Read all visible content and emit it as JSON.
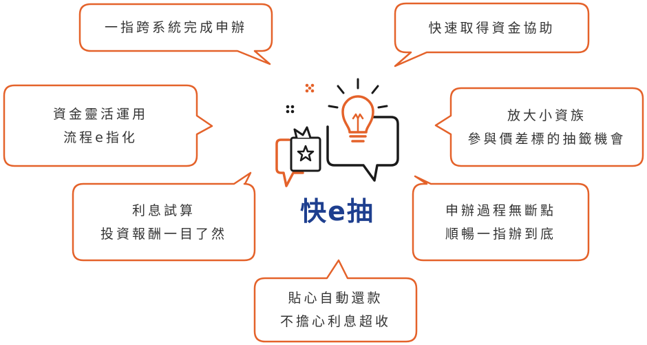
{
  "colors": {
    "bubble_border": "#e4622a",
    "text": "#333333",
    "title": "#1e3f8f",
    "icon_dark": "#1a1a1a",
    "icon_orange": "#e4622a"
  },
  "center": {
    "title": "快e抽",
    "icon": "lightbulb-chat-icon"
  },
  "bubbles": {
    "b1": {
      "lines": [
        "一指跨系統完成申辦"
      ]
    },
    "b2": {
      "lines": [
        "快速取得資金協助"
      ]
    },
    "b3": {
      "lines": [
        "資金靈活運用",
        "流程e指化"
      ]
    },
    "b4": {
      "lines": [
        "放大小資族",
        "參與價差標的抽籤機會"
      ]
    },
    "b5": {
      "lines": [
        "利息試算",
        "投資報酬一目了然"
      ]
    },
    "b6": {
      "lines": [
        "申辦過程無斷點",
        "順暢一指辦到底"
      ]
    },
    "b7": {
      "lines": [
        "貼心自動還款",
        "不擔心利息超收"
      ]
    }
  }
}
